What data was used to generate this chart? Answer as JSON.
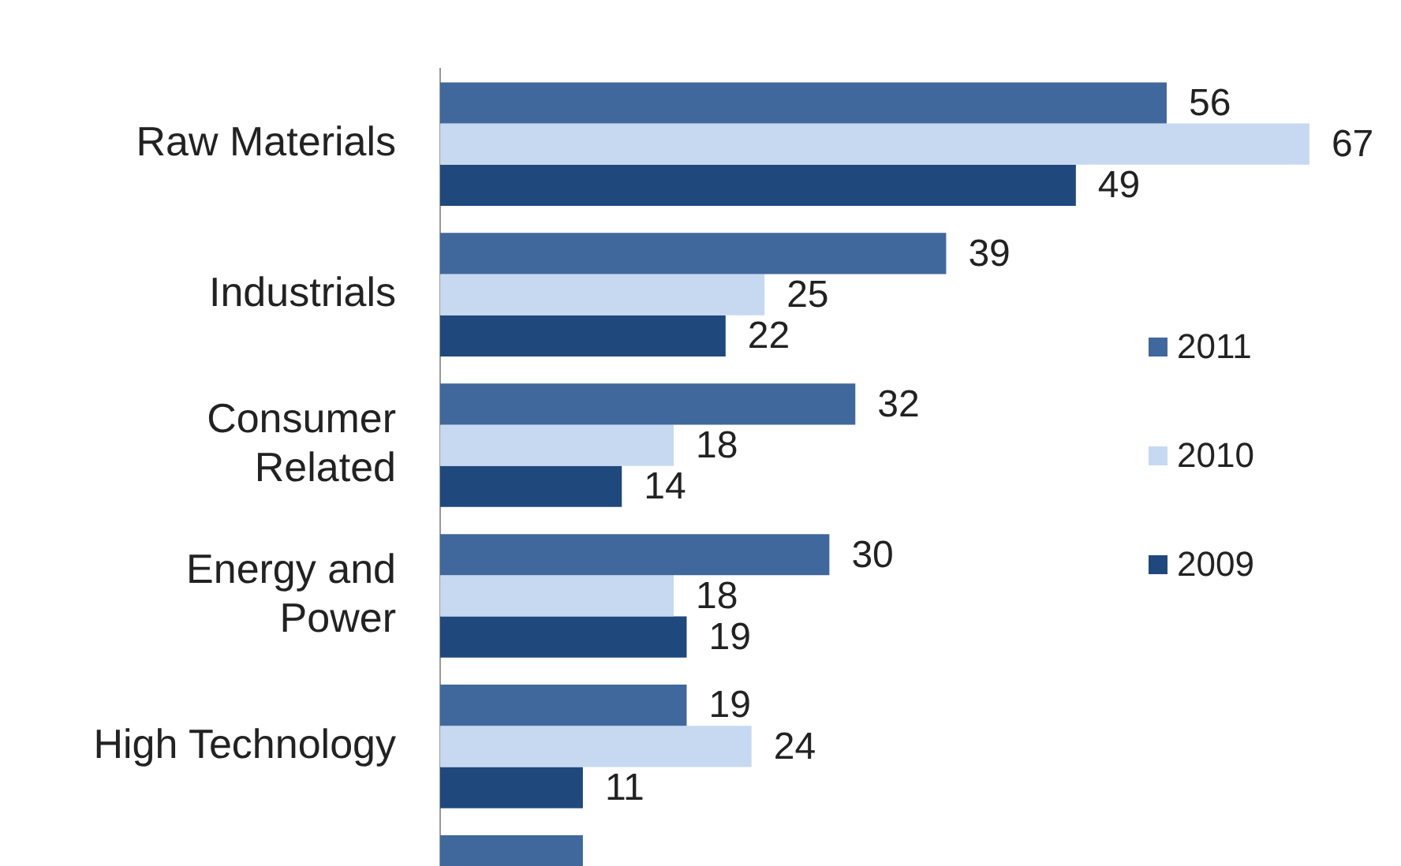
{
  "chart_data": {
    "type": "bar",
    "orientation": "horizontal",
    "categories": [
      "Raw Materials",
      "Industrials",
      "Consumer\nRelated",
      "Energy and\nPower",
      "High Technology",
      null
    ],
    "series": [
      {
        "name": "2011",
        "color": "#41689c",
        "values": [
          56,
          39,
          32,
          30,
          19,
          11
        ],
        "value_labels": [
          "56",
          "39",
          "32",
          "30",
          "19",
          null
        ]
      },
      {
        "name": "2010",
        "color": "#c6d9f1",
        "values": [
          67,
          25,
          18,
          18,
          24,
          null
        ],
        "value_labels": [
          "67",
          "25",
          "18",
          "18",
          "24",
          null
        ]
      },
      {
        "name": "2009",
        "color": "#1f497d",
        "values": [
          49,
          22,
          14,
          19,
          11,
          null
        ],
        "value_labels": [
          "49",
          "22",
          "14",
          "19",
          "11",
          null
        ]
      }
    ],
    "legend": "right"
  }
}
